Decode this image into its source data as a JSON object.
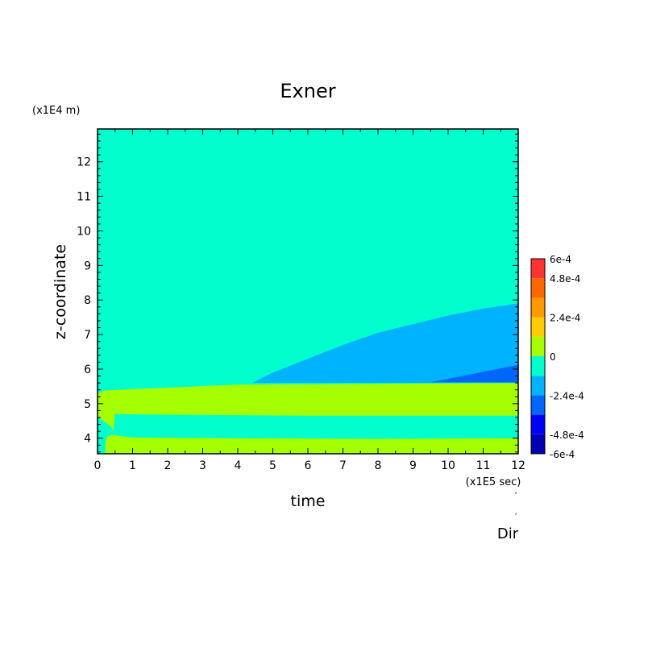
{
  "chart_data": {
    "type": "heatmap",
    "title": "Exner",
    "xlabel": "time",
    "ylabel": "z-coordinate",
    "x_unit": "(x1E5 sec)",
    "y_unit": "(x1E4 m)",
    "corner_label": "Dir",
    "xlim": [
      0,
      12
    ],
    "ylim": [
      3.55,
      12.95
    ],
    "x_ticks": [
      0,
      1,
      2,
      3,
      4,
      5,
      6,
      7,
      8,
      9,
      10,
      11,
      12
    ],
    "y_ticks": [
      4,
      5,
      6,
      7,
      8,
      9,
      10,
      11,
      12
    ],
    "background_color": "#00ffcc",
    "regions": [
      {
        "label": "0 to 1.2e-4",
        "color": "#a6ff00",
        "polygon": [
          [
            0.2,
            5.38
          ],
          [
            1,
            5.42
          ],
          [
            4,
            5.55
          ],
          [
            12,
            5.6
          ],
          [
            12,
            4.65
          ],
          [
            6,
            4.65
          ],
          [
            2,
            4.68
          ],
          [
            0.5,
            4.7
          ],
          [
            0.45,
            4.2
          ],
          [
            0.38,
            4.35
          ],
          [
            0,
            4.62
          ],
          [
            0,
            5.3
          ]
        ]
      },
      {
        "label": "0 to 1.2e-4",
        "color": "#a6ff00",
        "polygon": [
          [
            0.22,
            3.55
          ],
          [
            12,
            3.55
          ],
          [
            12,
            4.0
          ],
          [
            8,
            3.98
          ],
          [
            4,
            4.0
          ],
          [
            1,
            4.02
          ],
          [
            0.4,
            4.1
          ],
          [
            0.28,
            4.05
          ],
          [
            0.22,
            3.9
          ]
        ]
      },
      {
        "label": "-2.4e-4 to -1.2e-4",
        "color": "#00b3ff",
        "polygon": [
          [
            4.4,
            5.6
          ],
          [
            5,
            5.9
          ],
          [
            6,
            6.3
          ],
          [
            7,
            6.7
          ],
          [
            8,
            7.05
          ],
          [
            9,
            7.3
          ],
          [
            10,
            7.55
          ],
          [
            11,
            7.75
          ],
          [
            12,
            7.9
          ],
          [
            12,
            5.6
          ]
        ]
      },
      {
        "label": "-3.6e-4 to -2.4e-4",
        "color": "#0066ff",
        "polygon": [
          [
            9.5,
            5.62
          ],
          [
            10,
            5.72
          ],
          [
            11,
            5.92
          ],
          [
            12,
            6.12
          ],
          [
            12,
            5.62
          ]
        ]
      }
    ],
    "colorbar": {
      "min": -0.0006,
      "max": 0.0006,
      "colors": [
        "#0000b3",
        "#0000ff",
        "#0066ff",
        "#00b3ff",
        "#00ffcc",
        "#a6ff00",
        "#ffcc00",
        "#ff9900",
        "#ff6600",
        "#ff3333"
      ],
      "labels": [
        {
          "value": 0.0006,
          "text": "6e-4"
        },
        {
          "value": 0.00048,
          "text": "4.8e-4"
        },
        {
          "value": 0.00024,
          "text": "2.4e-4"
        },
        {
          "value": 0,
          "text": "0"
        },
        {
          "value": -0.00024,
          "text": "-2.4e-4"
        },
        {
          "value": -0.00048,
          "text": "-4.8e-4"
        },
        {
          "value": -0.0006,
          "text": "-6e-4"
        }
      ]
    }
  }
}
